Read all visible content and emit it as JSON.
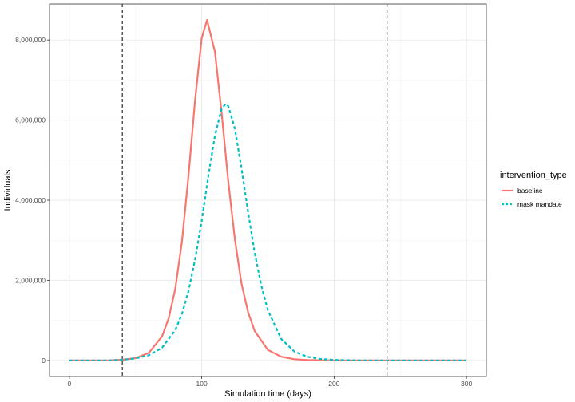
{
  "chart_data": {
    "type": "line",
    "title": "",
    "xlabel": "Simulation time (days)",
    "ylabel": "Individuals",
    "xlim": [
      -15,
      315
    ],
    "ylim": [
      -400000,
      8900000
    ],
    "xticks": [
      0,
      100,
      200,
      300
    ],
    "xtick_labels": [
      "0",
      "100",
      "200",
      "300"
    ],
    "yticks": [
      0,
      2000000,
      4000000,
      6000000,
      8000000
    ],
    "ytick_labels": [
      "0",
      "2,000,000",
      "4,000,000",
      "6,000,000",
      "8,000,000"
    ],
    "grid": true,
    "vlines": [
      40,
      240
    ],
    "legend": {
      "title": "intervention_type",
      "position": "right"
    },
    "series": [
      {
        "name": "baseline",
        "color": "#F8766D",
        "linestyle": "solid",
        "x": [
          0,
          10,
          20,
          30,
          40,
          50,
          60,
          70,
          75,
          80,
          85,
          90,
          95,
          100,
          104,
          110,
          115,
          120,
          125,
          130,
          135,
          140,
          150,
          160,
          170,
          180,
          200,
          220,
          240,
          260,
          280,
          300
        ],
        "y": [
          0,
          0,
          0,
          2000,
          18000,
          59000,
          190000,
          601000,
          1050000,
          1790000,
          2960000,
          4600000,
          6500000,
          8050000,
          8500000,
          7700000,
          6190000,
          4480000,
          3030000,
          1930000,
          1210000,
          735000,
          264000,
          94000,
          33000,
          11000,
          1000,
          0,
          0,
          0,
          0,
          0
        ]
      },
      {
        "name": "mask mandate",
        "color": "#00BFC4",
        "linestyle": "dashed",
        "x": [
          0,
          10,
          20,
          30,
          40,
          50,
          60,
          70,
          80,
          85,
          90,
          95,
          100,
          105,
          110,
          115,
          118,
          120,
          125,
          130,
          135,
          140,
          145,
          150,
          160,
          170,
          180,
          190,
          200,
          220,
          240,
          260,
          280,
          300
        ],
        "y": [
          0,
          0,
          0,
          3000,
          21000,
          53000,
          130000,
          317000,
          761000,
          1160000,
          1730000,
          2520000,
          3490000,
          4600000,
          5620000,
          6280000,
          6400000,
          6350000,
          5790000,
          4810000,
          3710000,
          2690000,
          1870000,
          1250000,
          538000,
          223000,
          91000,
          37000,
          15000,
          2000,
          0,
          0,
          0,
          0
        ]
      }
    ]
  }
}
